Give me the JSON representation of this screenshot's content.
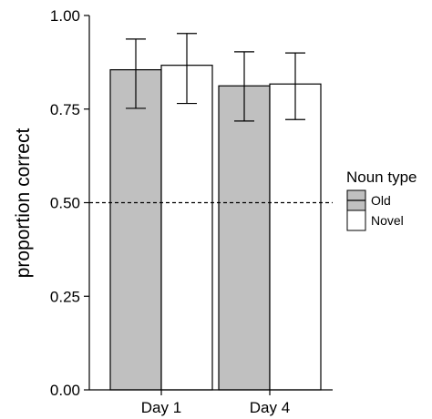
{
  "chart_data": {
    "type": "bar",
    "title": "",
    "xlabel": "",
    "ylabel": "proportion correct",
    "ylim": [
      0,
      1
    ],
    "yticks": [
      "0.00",
      "0.25",
      "0.50",
      "0.75",
      "1.00"
    ],
    "categories": [
      "Day 1",
      "Day 4"
    ],
    "series": [
      {
        "name": "Old",
        "color": "#c0c0c0",
        "values": [
          0.855,
          0.812
        ],
        "err_low": [
          0.752,
          0.718
        ],
        "err_high": [
          0.937,
          0.903
        ]
      },
      {
        "name": "Novel",
        "color": "#ffffff",
        "values": [
          0.867,
          0.817
        ],
        "err_low": [
          0.765,
          0.722
        ],
        "err_high": [
          0.952,
          0.9
        ]
      }
    ],
    "reference_line": {
      "y": 0.5,
      "style": "dashed"
    },
    "legend": {
      "title": "Noun type",
      "placement": "right"
    },
    "grid": false
  }
}
